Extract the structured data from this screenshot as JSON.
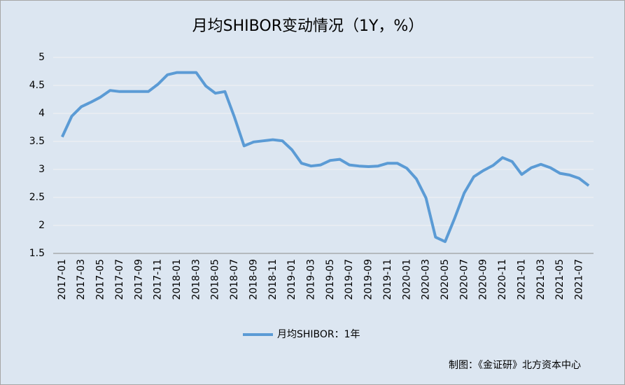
{
  "chart_data": {
    "type": "line",
    "title": "月均SHIBOR变动情况（1Y，%）",
    "categories": [
      "2017-01",
      null,
      "2017-03",
      null,
      "2017-05",
      null,
      "2017-07",
      null,
      "2017-09",
      null,
      "2017-11",
      null,
      "2018-01",
      null,
      "2018-03",
      null,
      "2018-05",
      null,
      "2018-07",
      null,
      "2018-09",
      null,
      "2018-11",
      null,
      "2019-01",
      null,
      "2019-03",
      null,
      "2019-05",
      null,
      "2019-07",
      null,
      "2019-09",
      null,
      "2019-11",
      null,
      "2020-01",
      null,
      "2020-03",
      null,
      "2020-05",
      null,
      "2020-07",
      null,
      "2020-09",
      null,
      "2020-11",
      null,
      "2021-01",
      null,
      "2021-03",
      null,
      "2021-05",
      null,
      "2021-07",
      null
    ],
    "series": [
      {
        "name": "月均SHIBOR：1年",
        "color": "#5b9bd5",
        "values": [
          3.58,
          3.95,
          4.12,
          4.2,
          4.29,
          4.41,
          4.39,
          4.39,
          4.39,
          4.39,
          4.52,
          4.69,
          4.73,
          4.73,
          4.73,
          4.49,
          4.36,
          4.39,
          3.93,
          3.42,
          3.49,
          3.51,
          3.53,
          3.51,
          3.35,
          3.11,
          3.06,
          3.08,
          3.16,
          3.18,
          3.08,
          3.06,
          3.05,
          3.06,
          3.11,
          3.11,
          3.02,
          2.83,
          2.49,
          1.79,
          1.71,
          2.13,
          2.58,
          2.87,
          2.98,
          3.07,
          3.21,
          3.14,
          2.91,
          3.03,
          3.09,
          3.03,
          2.93,
          2.9,
          2.84,
          2.71
        ]
      }
    ],
    "ylim": [
      1.5,
      5
    ],
    "yticks": [
      1.5,
      2,
      2.5,
      3,
      3.5,
      4,
      4.5,
      5
    ],
    "grid": true,
    "legend": "bottom",
    "source": "制图：《金证研》北方资本中心"
  }
}
